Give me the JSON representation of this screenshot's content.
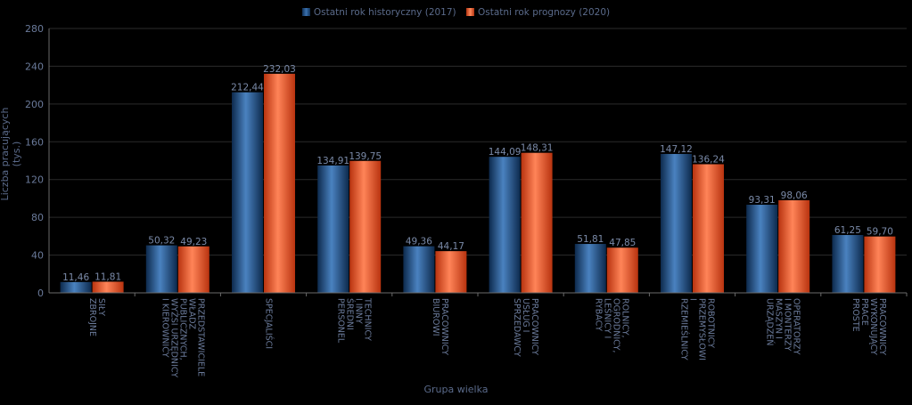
{
  "chart_data": {
    "type": "bar",
    "xlabel": "Grupa wielka",
    "ylabel": "Liczba pracujących (tys.)",
    "ylim": [
      0,
      280
    ],
    "yticks": [
      0,
      40,
      80,
      120,
      160,
      200,
      240,
      280
    ],
    "grid": true,
    "legend_position": "top-center",
    "categories": [
      [
        "SIŁY",
        "ZBROJNE"
      ],
      [
        "PRZEDSTAWICIELE",
        "WŁADZ",
        "PUBLICZNYCH,",
        "WYŻSI URZĘDNICY",
        "I KIEROWNICY"
      ],
      [
        "SPECJALIŚCI"
      ],
      [
        "TECHNICY",
        "I INNY",
        "ŚREDNI",
        "PERSONEL"
      ],
      [
        "PRACOWNICY",
        "BIUROWI"
      ],
      [
        "PRACOWNICY",
        "USŁUG I",
        "SPRZEDAWCY"
      ],
      [
        "ROLNICY,",
        "OGRODNICY,",
        "LEŚNICY I",
        "RYBACY"
      ],
      [
        "ROBOTNICY",
        "PRZEMYSŁOWI",
        "I",
        "RZEMIEŚLNICY"
      ],
      [
        "OPERATORZY",
        "I MONTERZY",
        "MASZYN I",
        "URZĄDZEŃ"
      ],
      [
        "PRACOWNICY",
        "WYKONUJĄCY",
        "PRACE",
        "PROSTE"
      ]
    ],
    "series": [
      {
        "name": "Ostatni rok historyczny (2017)",
        "color": "#1f4e85",
        "values": [
          11.46,
          50.32,
          212.44,
          134.91,
          49.36,
          144.09,
          51.81,
          147.12,
          93.31,
          61.25
        ],
        "labels": [
          "11,46",
          "50,32",
          "212,44",
          "134,91",
          "49,36",
          "144,09",
          "51,81",
          "147,12",
          "93,31",
          "61,25"
        ]
      },
      {
        "name": "Ostatni rok prognozy (2020)",
        "color": "#e8471c",
        "values": [
          11.81,
          49.23,
          232.03,
          139.75,
          44.17,
          148.31,
          47.85,
          136.24,
          98.06,
          59.7
        ],
        "labels": [
          "11,81",
          "49,23",
          "232,03",
          "139,75",
          "44,17",
          "148,31",
          "47,85",
          "136,24",
          "98,06",
          "59,70"
        ]
      }
    ]
  }
}
